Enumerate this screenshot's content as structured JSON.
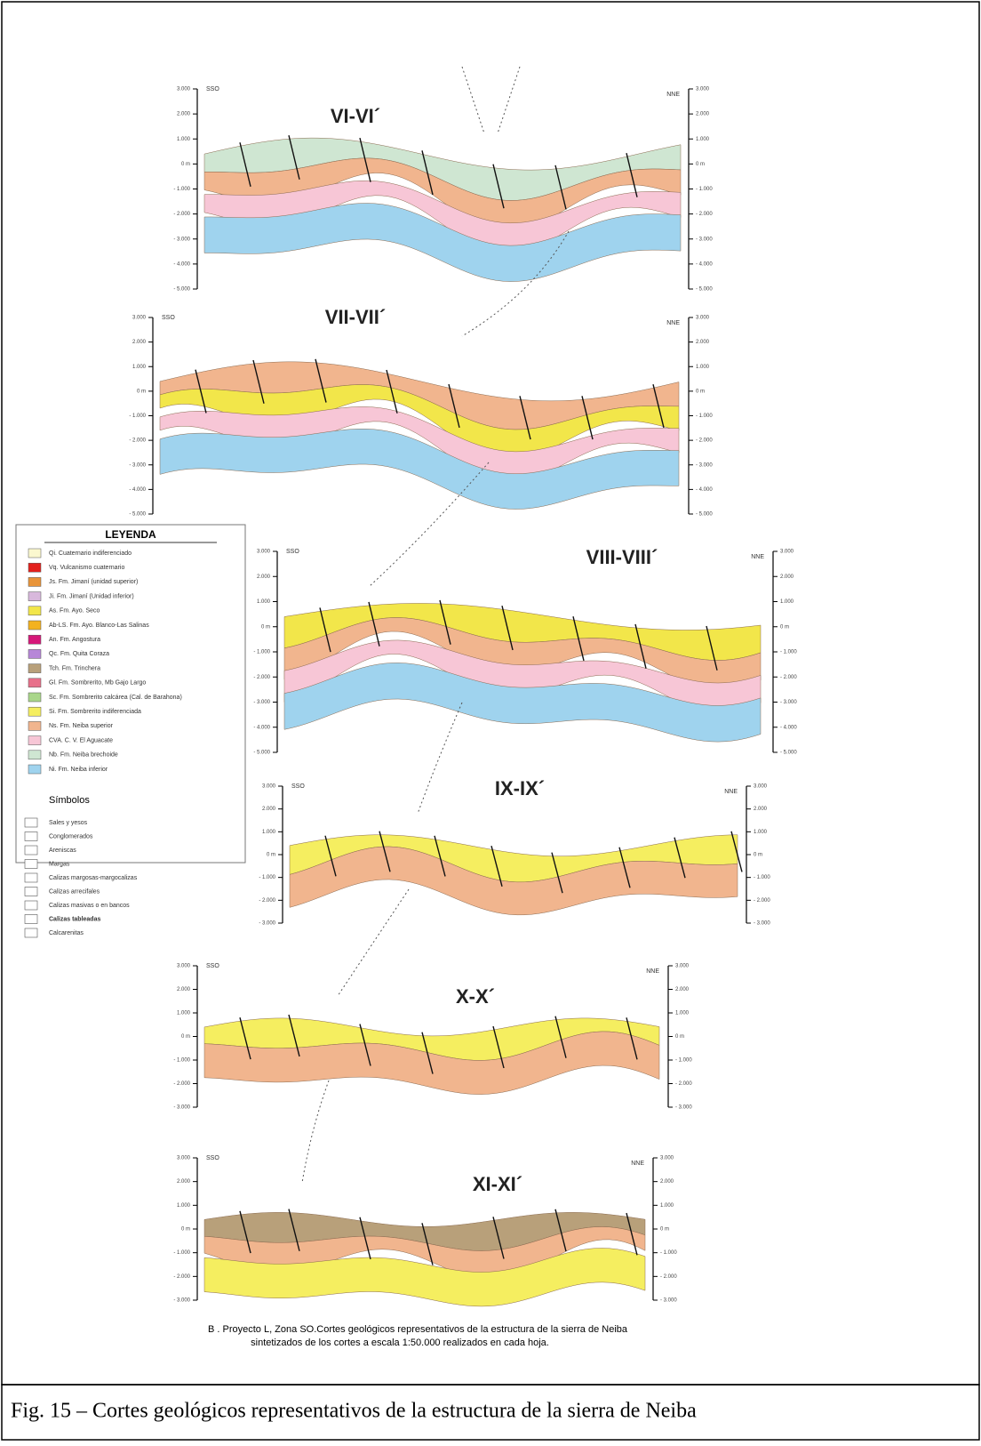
{
  "sections": [
    {
      "title": "VI-VI´",
      "left_label": "SSO",
      "right_label": "NNE",
      "left_ticks": [
        "3.000",
        "2.000",
        "1.000",
        "0 m",
        "- 1.000",
        "- 2.000",
        "- 3.000",
        "- 4.000",
        "- 5.000"
      ],
      "right_ticks": [
        "3.000",
        "2.000",
        "1.000",
        "0 m",
        "- 1.000",
        "- 2.000",
        "- 3.000",
        "- 4.000",
        "- 5.000"
      ]
    },
    {
      "title": "VII-VII´",
      "left_label": "SSO",
      "right_label": "NNE",
      "left_ticks": [
        "3.000",
        "2.000",
        "1.000",
        "0 m",
        "- 1.000",
        "- 2.000",
        "- 3.000",
        "- 4.000",
        "- 5.000"
      ],
      "right_ticks": [
        "3.000",
        "2.000",
        "1.000",
        "0 m",
        "- 1.000",
        "- 2.000",
        "- 3.000",
        "- 4.000",
        "- 5.000"
      ]
    },
    {
      "title": "VIII-VIII´",
      "left_label": "SSO",
      "right_label": "NNE",
      "left_ticks": [
        "3.000",
        "2.000",
        "1.000",
        "0 m",
        "- 1.000",
        "- 2.000",
        "- 3.000",
        "- 4.000",
        "- 5.000"
      ],
      "right_ticks": [
        "3.000",
        "2.000",
        "1.000",
        "0 m",
        "- 1.000",
        "- 2.000",
        "- 3.000",
        "- 4.000",
        "- 5.000"
      ]
    },
    {
      "title": "IX-IX´",
      "left_label": "SSO",
      "right_label": "NNE",
      "left_ticks": [
        "3.000",
        "2.000",
        "1.000",
        "0 m",
        "- 1.000",
        "- 2.000",
        "- 3.000"
      ],
      "right_ticks": [
        "3.000",
        "2.000",
        "1.000",
        "0 m",
        "- 1.000",
        "- 2.000",
        "- 3.000"
      ]
    },
    {
      "title": "X-X´",
      "left_label": "SSO",
      "right_label": "NNE",
      "left_ticks": [
        "3.000",
        "2.000",
        "1.000",
        "0 m",
        "- 1.000",
        "- 2.000",
        "- 3.000"
      ],
      "right_ticks": [
        "3.000",
        "2.000",
        "1.000",
        "0 m",
        "- 1.000",
        "- 2.000",
        "- 3.000"
      ]
    },
    {
      "title": "XI-XI´",
      "left_label": "SSO",
      "right_label": "NNE",
      "left_ticks": [
        "3.000",
        "2.000",
        "1.000",
        "0 m",
        "- 1.000",
        "- 2.000",
        "- 3.000"
      ],
      "right_ticks": [
        "3.000",
        "2.000",
        "1.000",
        "0 m",
        "- 1.000",
        "- 2.000",
        "- 3.000"
      ]
    }
  ],
  "legend": {
    "title": "LEYENDA",
    "items": [
      {
        "label": "Qi. Cuaternario indiferenciado",
        "color": "#fbf8cf"
      },
      {
        "label": "Vq. Vulcanismo cuaternario",
        "color": "#e3201c"
      },
      {
        "label": "Js. Fm. Jimaní (unidad superior)",
        "color": "#e8943a"
      },
      {
        "label": "Ji. Fm. Jimaní (Unidad inferior)",
        "color": "#d8b8dc"
      },
      {
        "label": "As. Fm. Ayo. Seco",
        "color": "#f2e64a"
      },
      {
        "label": "Ab-LS. Fm. Ayo. Blanco-Las Salinas",
        "color": "#f3b21f"
      },
      {
        "label": "An. Fm. Angostura",
        "color": "#d6187a"
      },
      {
        "label": "Qc. Fm. Quita Coraza",
        "color": "#b787d8"
      },
      {
        "label": "Tch. Fm. Trinchera",
        "color": "#b8a07a"
      },
      {
        "label": "Gl. Fm. Sombrerito, Mb Gajo Largo",
        "color": "#e8708a"
      },
      {
        "label": "Sc. Fm. Sombrerito calcárea (Cal. de Barahona)",
        "color": "#a9d68a"
      },
      {
        "label": "Si. Fm. Sombrerito indiferenciada",
        "color": "#f5ee60"
      },
      {
        "label": "Ns. Fm. Neiba superior",
        "color": "#f1b58e"
      },
      {
        "label": "CVA. C. V. El Aguacate",
        "color": "#f7c6d6"
      },
      {
        "label": "Nb. Fm. Neiba brechoide",
        "color": "#cfe6d2"
      },
      {
        "label": "Ni. Fm. Neiba inferior",
        "color": "#9fd3ee"
      }
    ],
    "symbols_title": "Símbolos",
    "symbols": [
      "Sales y yesos",
      "Conglomerados",
      "Areniscas",
      "Margas",
      "Calizas margosas-margocalizas",
      "Calizas arrecifales",
      "Calizas masivas o en bancos",
      "Calizas tableadas",
      "Calcarenitas"
    ]
  },
  "note": [
    "B . Proyecto L, Zona SO.Cortes geológicos representativos de la estructura de la sierra de Neiba",
    "sintetizados de los cortes a escala 1:50.000 realizados en cada hoja."
  ],
  "caption": "Fig. 15 – Cortes geológicos representativos de la estructura de la sierra de Neiba"
}
